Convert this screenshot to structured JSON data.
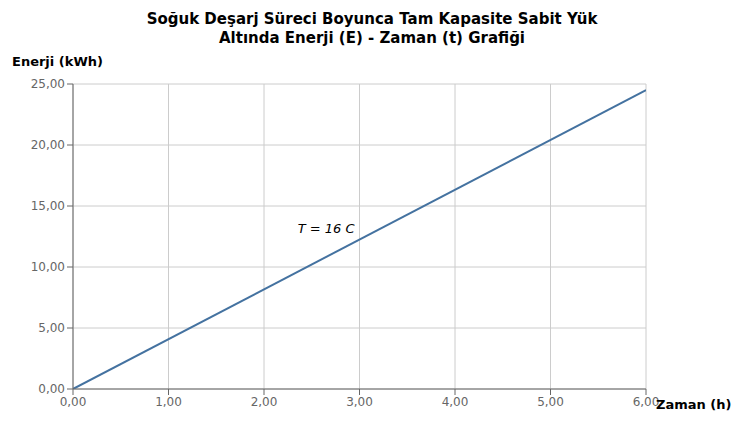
{
  "chart_data": {
    "type": "line",
    "title": "Soğuk Deşarj Süreci Boyunca Tam Kapasite Sabit Yük\nAltında Enerji (E) - Zaman (t) Grafiği",
    "xlabel": "Zaman (h)",
    "ylabel": "Enerji (kWh)",
    "x": [
      0.0,
      6.0
    ],
    "values": [
      0.0,
      24.5
    ],
    "color": "#4472a0",
    "xlim": [
      0.0,
      6.0
    ],
    "ylim": [
      0.0,
      25.0
    ],
    "xticks": [
      {
        "value": 0,
        "label": "0,00"
      },
      {
        "value": 1,
        "label": "1,00"
      },
      {
        "value": 2,
        "label": "2,00"
      },
      {
        "value": 3,
        "label": "3,00"
      },
      {
        "value": 4,
        "label": "4,00"
      },
      {
        "value": 5,
        "label": "5,00"
      },
      {
        "value": 6,
        "label": "6,00"
      }
    ],
    "yticks": [
      {
        "value": 0,
        "label": "0,00"
      },
      {
        "value": 5,
        "label": "5,00"
      },
      {
        "value": 10,
        "label": "10,00"
      },
      {
        "value": 15,
        "label": "15,00"
      },
      {
        "value": 20,
        "label": "20,00"
      },
      {
        "value": 25,
        "label": "25,00"
      }
    ],
    "grid": true,
    "annotations": [
      {
        "text": "T = 16 C",
        "x": 2.3,
        "y": 13.2
      }
    ]
  }
}
